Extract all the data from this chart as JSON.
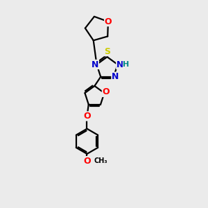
{
  "bg_color": "#ebebeb",
  "bond_color": "#000000",
  "bond_width": 1.6,
  "atom_colors": {
    "O": "#ff0000",
    "N": "#0000cc",
    "S": "#cccc00",
    "H": "#008888",
    "C": "#000000"
  },
  "font_size": 9,
  "xlim": [
    0,
    10
  ],
  "ylim": [
    0,
    13
  ]
}
